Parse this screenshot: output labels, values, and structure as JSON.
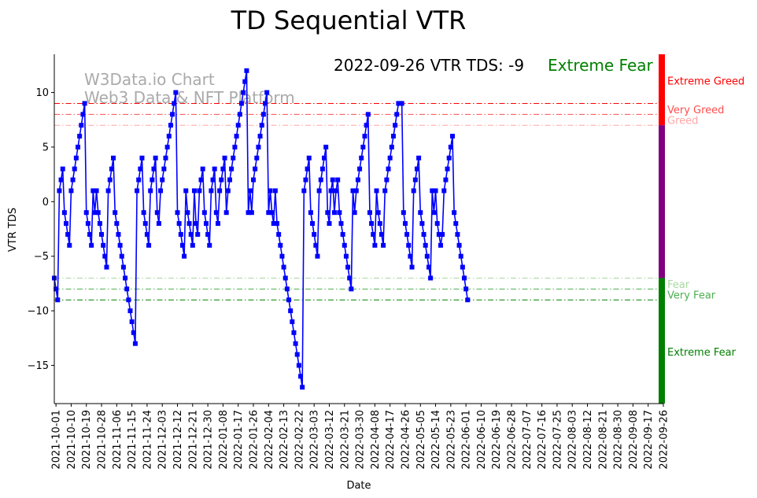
{
  "chart_data": {
    "type": "line",
    "title": "TD Sequential VTR",
    "xlabel": "Date",
    "ylabel": "VTR TDS",
    "ylim": [
      -18.5,
      13.5
    ],
    "yticks": [
      -15,
      -10,
      -5,
      0,
      5,
      10
    ],
    "xlim": [
      "2021-09-30",
      "2022-09-26"
    ],
    "xticks": [
      "2021-10-01",
      "2021-10-10",
      "2021-10-19",
      "2021-10-28",
      "2021-11-06",
      "2021-11-15",
      "2021-11-24",
      "2021-12-03",
      "2021-12-12",
      "2021-12-21",
      "2021-12-30",
      "2022-01-08",
      "2022-01-17",
      "2022-01-26",
      "2022-02-04",
      "2022-02-13",
      "2022-02-22",
      "2022-03-03",
      "2022-03-12",
      "2022-03-21",
      "2022-03-30",
      "2022-04-08",
      "2022-04-17",
      "2022-04-26",
      "2022-05-05",
      "2022-05-14",
      "2022-05-23",
      "2022-06-01",
      "2022-06-10",
      "2022-06-19",
      "2022-06-28",
      "2022-07-07",
      "2022-07-16",
      "2022-07-25",
      "2022-08-03",
      "2022-08-12",
      "2022-08-21",
      "2022-08-30",
      "2022-09-08",
      "2022-09-17",
      "2022-09-26"
    ],
    "series": [
      {
        "color": "#0000ff",
        "marker": "square",
        "start_date": "2021-09-30",
        "values": [
          -7,
          -8,
          -9,
          1,
          2,
          3,
          -1,
          -2,
          -3,
          -4,
          1,
          2,
          3,
          4,
          5,
          6,
          7,
          8,
          9,
          -1,
          -2,
          -3,
          -4,
          1,
          -1,
          1,
          -1,
          -2,
          -3,
          -4,
          -5,
          -6,
          1,
          2,
          3,
          4,
          -1,
          -2,
          -3,
          -4,
          -5,
          -6,
          -7,
          -8,
          -9,
          -10,
          -11,
          -12,
          -13,
          1,
          2,
          3,
          4,
          -1,
          -2,
          -3,
          -4,
          1,
          2,
          3,
          4,
          -1,
          -2,
          1,
          2,
          3,
          4,
          5,
          6,
          7,
          8,
          9,
          10,
          -1,
          -2,
          -3,
          -4,
          -5,
          1,
          -1,
          -2,
          -3,
          -4,
          1,
          -2,
          -3,
          1,
          2,
          3,
          -1,
          -2,
          -3,
          -4,
          1,
          2,
          3,
          -1,
          -2,
          1,
          2,
          3,
          4,
          -1,
          1,
          2,
          3,
          4,
          5,
          6,
          7,
          8,
          9,
          10,
          11,
          12,
          -1,
          1,
          -1,
          2,
          3,
          4,
          5,
          6,
          7,
          8,
          9,
          10,
          -1,
          1,
          -1,
          -2,
          1,
          -2,
          -3,
          -4,
          -5,
          -6,
          -7,
          -8,
          -9,
          -10,
          -11,
          -12,
          -13,
          -14,
          -15,
          -16,
          -17,
          1,
          2,
          3,
          4,
          -1,
          -2,
          -3,
          -4,
          -5,
          1,
          2,
          3,
          4,
          5,
          -1,
          -2,
          1,
          2,
          -1,
          1,
          2,
          -1,
          -2,
          -3,
          -4,
          -5,
          -6,
          -7,
          -8,
          1,
          -1,
          1,
          2,
          3,
          4,
          5,
          6,
          7,
          8,
          -1,
          -2,
          -3,
          -4,
          1,
          -1,
          -2,
          -3,
          -4,
          1,
          2,
          3,
          4,
          5,
          6,
          7,
          8,
          9,
          9,
          9,
          -1,
          -2,
          -3,
          -4,
          -5,
          -6,
          1,
          2,
          3,
          4,
          -1,
          -2,
          -3,
          -4,
          -5,
          -6,
          -7,
          1,
          -1,
          1,
          -2,
          -3,
          -4,
          -3,
          1,
          2,
          3,
          4,
          5,
          6,
          -1,
          -2,
          -3,
          -4,
          -5,
          -6,
          -7,
          -8,
          -9
        ]
      }
    ],
    "thresholds": [
      {
        "value": 9,
        "label": "Extreme Greed",
        "color": "#ff0000",
        "style": "dashdot"
      },
      {
        "value": 8,
        "label": "Very Greed",
        "color": "#ff4d4d",
        "style": "dashdot"
      },
      {
        "value": 7,
        "label": "Greed",
        "color": "#ffa6a6",
        "style": "dashdot"
      },
      {
        "value": -7,
        "label": "Fear",
        "color": "#a8d8a0",
        "style": "dashdot"
      },
      {
        "value": -8,
        "label": "Very Fear",
        "color": "#4caf50",
        "style": "dashdot"
      },
      {
        "value": -9,
        "label": "Extreme Fear",
        "color": "#007f00",
        "style": "dashdot"
      }
    ],
    "side_bar": [
      {
        "from": 7,
        "to": 13.5,
        "color": "#ff0000"
      },
      {
        "from": -7,
        "to": 7,
        "color": "#800080"
      },
      {
        "from": -18.5,
        "to": -7,
        "color": "#007f00"
      }
    ],
    "zone_labels": [
      {
        "text": "Extreme Greed",
        "value": 11,
        "color": "#ff0000"
      },
      {
        "text": "Very Greed",
        "value": 8.4,
        "color": "#ff4d4d"
      },
      {
        "text": "Greed",
        "value": 7.4,
        "color": "#ffa6a6"
      },
      {
        "text": "Fear",
        "value": -7.6,
        "color": "#a8d8a0"
      },
      {
        "text": "Very Fear",
        "value": -8.6,
        "color": "#4caf50"
      },
      {
        "text": "Extreme Fear",
        "value": -13.8,
        "color": "#007f00"
      }
    ]
  },
  "watermark": {
    "line1": "W3Data.io Chart",
    "line2": "Web3 Data & NFT Platform",
    "color": "#aaaaaa"
  },
  "status": {
    "text": "2022-09-26 VTR TDS: -9",
    "state": "Extreme Fear",
    "state_color": "#008000"
  }
}
